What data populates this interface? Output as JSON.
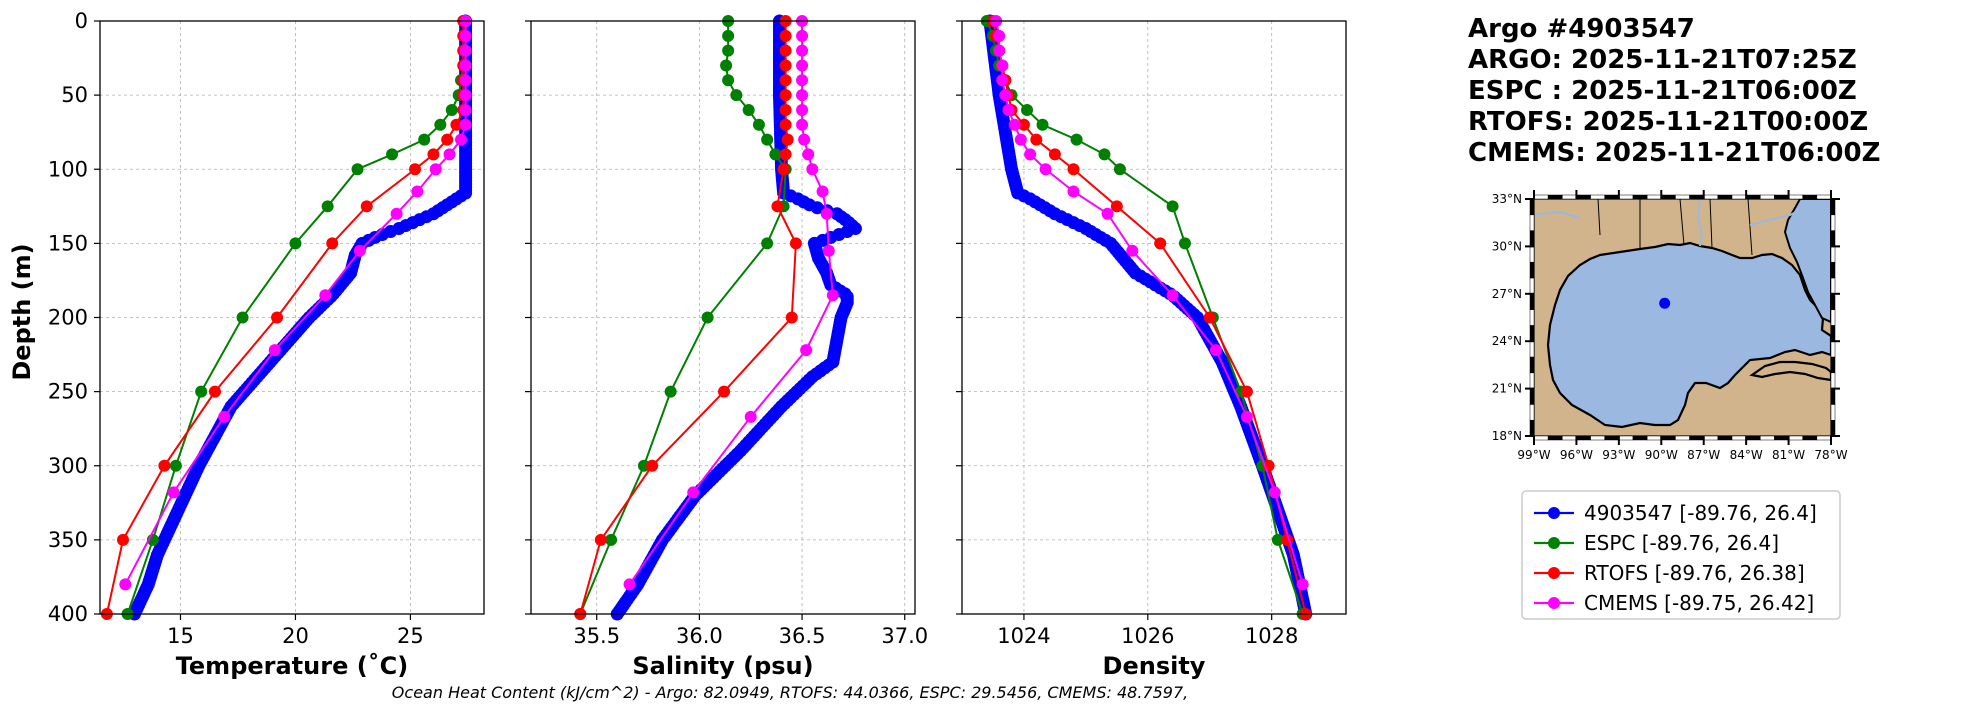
{
  "header": {
    "line1": "Argo #4903547",
    "line2": "ARGO: 2025-11-21T07:25Z",
    "line3": "ESPC : 2025-11-21T06:00Z",
    "line4": "RTOFS: 2025-11-21T00:00Z",
    "line5": "CMEMS: 2025-11-21T06:00Z"
  },
  "footer": "Ocean Heat Content (kJ/cm^2) - Argo: 82.0949,  RTOFS: 44.0366,  ESPC: 29.5456,  CMEMS: 48.7597,",
  "colors": {
    "argo": "#0000ff",
    "espc": "#008000",
    "rtofs": "#ff0000",
    "cmems": "#ff00ff",
    "land": "#d2b48c",
    "ocean": "#9bb8e0"
  },
  "chart_data": [
    {
      "type": "line",
      "title": "",
      "xlabel": "Temperature (˚C)",
      "ylabel": "Depth (m)",
      "xlim": [
        11.5,
        28.2
      ],
      "ylim": [
        400,
        0
      ],
      "xticks": [
        "15",
        "20",
        "25"
      ],
      "xtick_values": [
        15,
        20,
        25
      ],
      "yticks": [
        "0",
        "50",
        "100",
        "150",
        "200",
        "250",
        "300",
        "350",
        "400"
      ],
      "ytick_values": [
        0,
        50,
        100,
        150,
        200,
        250,
        300,
        350,
        400
      ],
      "grid": true,
      "series": [
        {
          "name": "4903547",
          "color": "#0000ff",
          "dense": true,
          "depth": [
            0,
            50,
            100,
            116,
            120,
            130,
            140,
            145,
            150,
            158,
            170,
            185,
            200,
            230,
            260,
            300,
            330,
            360,
            380,
            400
          ],
          "values": [
            27.4,
            27.4,
            27.4,
            27.4,
            27.0,
            26.0,
            24.5,
            23.6,
            22.9,
            22.6,
            22.4,
            21.6,
            20.6,
            18.9,
            17.2,
            15.8,
            14.9,
            14.0,
            13.6,
            13.0
          ]
        },
        {
          "name": "ESPC",
          "color": "#008000",
          "depth": [
            0,
            10,
            20,
            30,
            40,
            50,
            60,
            70,
            80,
            90,
            100,
            125,
            150,
            200,
            250,
            300,
            350,
            400
          ],
          "values": [
            27.3,
            27.3,
            27.3,
            27.3,
            27.2,
            27.1,
            26.8,
            26.3,
            25.6,
            24.2,
            22.7,
            21.4,
            20.0,
            17.7,
            15.9,
            14.8,
            13.8,
            12.7
          ]
        },
        {
          "name": "RTOFS",
          "color": "#ff0000",
          "depth": [
            0,
            10,
            20,
            30,
            40,
            50,
            60,
            70,
            80,
            90,
            100,
            125,
            150,
            200,
            250,
            300,
            350,
            400
          ],
          "values": [
            27.3,
            27.3,
            27.3,
            27.3,
            27.3,
            27.3,
            27.3,
            27.0,
            26.6,
            26.0,
            25.2,
            23.1,
            21.6,
            19.2,
            16.5,
            14.3,
            12.5,
            11.8
          ]
        },
        {
          "name": "CMEMS",
          "color": "#ff00ff",
          "depth": [
            0,
            10,
            20,
            30,
            40,
            50,
            60,
            70,
            80,
            90,
            100,
            115,
            130,
            155,
            185,
            222,
            267,
            318,
            380
          ],
          "values": [
            27.4,
            27.4,
            27.4,
            27.4,
            27.4,
            27.4,
            27.4,
            27.4,
            27.2,
            26.7,
            26.1,
            25.3,
            24.4,
            22.8,
            21.3,
            19.1,
            16.9,
            14.7,
            12.6
          ]
        }
      ]
    },
    {
      "type": "line",
      "title": "",
      "xlabel": "Salinity (psu)",
      "ylabel": "",
      "xlim": [
        35.18,
        37.05
      ],
      "ylim": [
        400,
        0
      ],
      "xticks": [
        "35.5",
        "36.0",
        "36.5",
        "37.0"
      ],
      "xtick_values": [
        35.5,
        36.0,
        36.5,
        37.0
      ],
      "grid": true,
      "series": [
        {
          "name": "4903547",
          "color": "#0000ff",
          "dense": true,
          "depth": [
            0,
            50,
            100,
            116,
            120,
            125,
            130,
            135,
            140,
            145,
            150,
            160,
            170,
            178,
            185,
            190,
            200,
            215,
            230,
            240,
            260,
            290,
            320,
            350,
            380,
            400
          ],
          "values": [
            36.39,
            36.39,
            36.4,
            36.41,
            36.48,
            36.55,
            36.67,
            36.72,
            36.76,
            36.66,
            36.56,
            36.58,
            36.62,
            36.64,
            36.72,
            36.72,
            36.69,
            36.67,
            36.65,
            36.55,
            36.4,
            36.2,
            35.98,
            35.82,
            35.7,
            35.6
          ]
        },
        {
          "name": "ESPC",
          "color": "#008000",
          "depth": [
            0,
            10,
            20,
            30,
            40,
            50,
            60,
            70,
            80,
            90,
            100,
            125,
            150,
            200,
            250,
            300,
            350,
            400
          ],
          "values": [
            36.14,
            36.14,
            36.14,
            36.13,
            36.14,
            36.18,
            36.24,
            36.29,
            36.33,
            36.37,
            36.42,
            36.41,
            36.33,
            36.04,
            35.86,
            35.73,
            35.57,
            35.42
          ]
        },
        {
          "name": "RTOFS",
          "color": "#ff0000",
          "depth": [
            0,
            10,
            20,
            30,
            40,
            50,
            60,
            70,
            80,
            90,
            100,
            125,
            150,
            200,
            250,
            300,
            350,
            400
          ],
          "values": [
            36.42,
            36.42,
            36.42,
            36.42,
            36.42,
            36.42,
            36.42,
            36.42,
            36.43,
            36.42,
            36.41,
            36.38,
            36.47,
            36.45,
            36.12,
            35.77,
            35.52,
            35.42
          ]
        },
        {
          "name": "CMEMS",
          "color": "#ff00ff",
          "depth": [
            0,
            10,
            20,
            30,
            40,
            50,
            60,
            70,
            80,
            90,
            100,
            115,
            130,
            155,
            185,
            222,
            267,
            318,
            380
          ],
          "values": [
            36.5,
            36.5,
            36.5,
            36.5,
            36.5,
            36.5,
            36.5,
            36.5,
            36.51,
            36.53,
            36.55,
            36.6,
            36.62,
            36.63,
            36.65,
            36.52,
            36.25,
            35.97,
            35.66
          ]
        }
      ]
    },
    {
      "type": "line",
      "title": "",
      "xlabel": "Density",
      "ylabel": "",
      "xlim": [
        1023.0,
        1029.2
      ],
      "ylim": [
        400,
        0
      ],
      "xticks": [
        "1024",
        "1026",
        "1028"
      ],
      "xtick_values": [
        1024,
        1026,
        1028
      ],
      "grid": true,
      "series": [
        {
          "name": "4903547",
          "color": "#0000ff",
          "dense": true,
          "depth": [
            0,
            50,
            100,
            116,
            120,
            130,
            140,
            150,
            160,
            170,
            185,
            200,
            230,
            260,
            300,
            330,
            360,
            400
          ],
          "values": [
            1023.45,
            1023.6,
            1023.8,
            1023.9,
            1024.1,
            1024.5,
            1025.0,
            1025.4,
            1025.6,
            1025.8,
            1026.4,
            1026.8,
            1027.2,
            1027.5,
            1027.85,
            1028.1,
            1028.35,
            1028.55
          ]
        },
        {
          "name": "ESPC",
          "color": "#008000",
          "depth": [
            0,
            10,
            20,
            30,
            40,
            50,
            60,
            70,
            80,
            90,
            100,
            125,
            150,
            200,
            250,
            300,
            350,
            400
          ],
          "values": [
            1023.4,
            1023.5,
            1023.55,
            1023.6,
            1023.7,
            1023.8,
            1024.05,
            1024.3,
            1024.85,
            1025.3,
            1025.55,
            1026.4,
            1026.6,
            1027.05,
            1027.5,
            1027.85,
            1028.1,
            1028.5
          ]
        },
        {
          "name": "RTOFS",
          "color": "#ff0000",
          "depth": [
            0,
            10,
            20,
            30,
            40,
            50,
            60,
            70,
            80,
            90,
            100,
            125,
            150,
            200,
            250,
            300,
            350,
            400
          ],
          "values": [
            1023.5,
            1023.55,
            1023.6,
            1023.65,
            1023.7,
            1023.75,
            1023.8,
            1024.0,
            1024.2,
            1024.5,
            1024.8,
            1025.5,
            1026.2,
            1027.0,
            1027.6,
            1027.95,
            1028.25,
            1028.55
          ]
        },
        {
          "name": "CMEMS",
          "color": "#ff00ff",
          "depth": [
            0,
            10,
            20,
            30,
            40,
            50,
            60,
            70,
            80,
            90,
            100,
            115,
            130,
            155,
            185,
            222,
            267,
            318,
            380
          ],
          "values": [
            1023.55,
            1023.6,
            1023.6,
            1023.65,
            1023.65,
            1023.7,
            1023.75,
            1023.85,
            1023.95,
            1024.1,
            1024.35,
            1024.8,
            1025.35,
            1025.75,
            1026.4,
            1027.1,
            1027.6,
            1028.05,
            1028.5
          ]
        }
      ]
    }
  ],
  "map": {
    "lat_ticks": [
      "33°N",
      "30°N",
      "27°N",
      "24°N",
      "21°N",
      "18°N"
    ],
    "lat_values": [
      33,
      30,
      27,
      24,
      21,
      18
    ],
    "lon_ticks": [
      "99°W",
      "96°W",
      "93°W",
      "90°W",
      "87°W",
      "84°W",
      "81°W",
      "78°W"
    ],
    "lon_values": [
      -99,
      -96,
      -93,
      -90,
      -87,
      -84,
      -81,
      -78
    ],
    "extent": {
      "lon_min": -99,
      "lon_max": -78,
      "lat_min": 18,
      "lat_max": 33
    },
    "float_position": {
      "lon": -89.76,
      "lat": 26.4
    }
  },
  "legend": [
    {
      "label": "4903547 [-89.76, 26.4]",
      "color": "#0000ff"
    },
    {
      "label": "ESPC [-89.76, 26.4]",
      "color": "#008000"
    },
    {
      "label": "RTOFS [-89.76, 26.38]",
      "color": "#ff0000"
    },
    {
      "label": "CMEMS [-89.75, 26.42]",
      "color": "#ff00ff"
    }
  ]
}
